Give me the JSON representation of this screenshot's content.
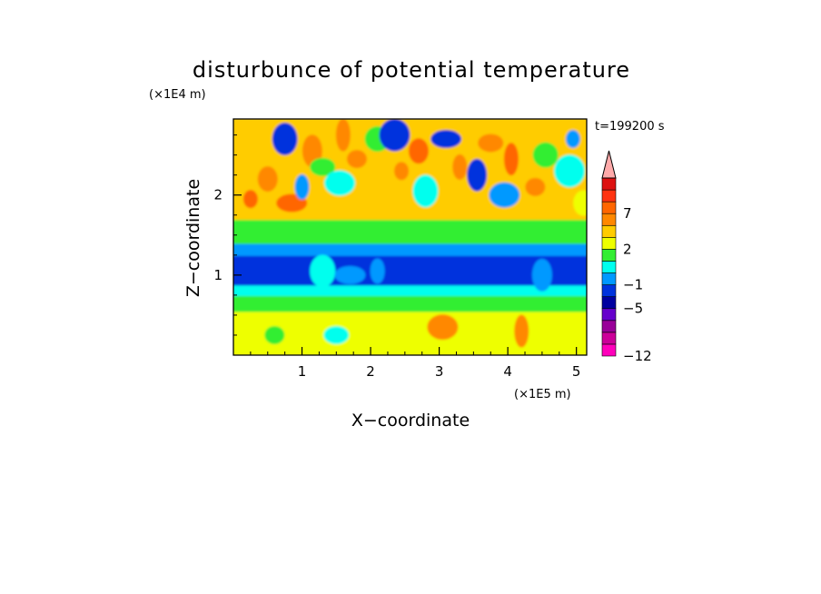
{
  "chart_data": {
    "type": "heatmap",
    "title": "disturbunce of potential temperature",
    "time_label": "t=199200 s",
    "xlabel": "X−coordinate",
    "ylabel": "Z−coordinate",
    "x_unit": "(×1E5 m)",
    "y_unit": "(×1E4 m)",
    "xlim": [
      0,
      5.15
    ],
    "ylim": [
      0,
      2.95
    ],
    "x_ticks": [
      1,
      2,
      3,
      4,
      5
    ],
    "y_ticks": [
      1,
      2
    ],
    "colorbar": {
      "levels": [
        -12,
        -11,
        -9,
        -7,
        -5,
        -3,
        -1,
        0,
        1,
        2,
        3,
        5,
        7,
        9,
        11
      ],
      "labels": [
        "−12",
        "−5",
        "−1",
        "2",
        "7"
      ],
      "extend": "max",
      "colors": [
        "#ff00bb",
        "#cc0099",
        "#990099",
        "#6600cc",
        "#0000a0",
        "#0033dd",
        "#0099ff",
        "#00ffee",
        "#33ee33",
        "#eeff00",
        "#ffcc00",
        "#ff8800",
        "#ff6600",
        "#ff3311",
        "#dd1111",
        "#ffaaaa"
      ]
    },
    "bands": [
      {
        "zmin": 0.0,
        "zmax": 0.55,
        "value": 1.5
      },
      {
        "zmin": 0.55,
        "zmax": 0.75,
        "value": 0.5
      },
      {
        "zmin": 0.75,
        "zmax": 0.88,
        "value": -0.5
      },
      {
        "zmin": 0.88,
        "zmax": 1.25,
        "value": -4.0
      },
      {
        "zmin": 1.25,
        "zmax": 1.4,
        "value": -2.0
      },
      {
        "zmin": 1.4,
        "zmax": 1.7,
        "value": 0.5
      },
      {
        "zmin": 1.7,
        "zmax": 2.95,
        "value": 2.5
      }
    ],
    "features": [
      {
        "x": 0.25,
        "z": 1.95,
        "value": 5.5
      },
      {
        "x": 0.5,
        "z": 2.2,
        "value": 3.0
      },
      {
        "x": 0.75,
        "z": 2.7,
        "value": -4.0
      },
      {
        "x": 0.85,
        "z": 1.9,
        "value": 5.5
      },
      {
        "x": 1.0,
        "z": 2.1,
        "value": -1.5
      },
      {
        "x": 1.15,
        "z": 2.55,
        "value": 4.0
      },
      {
        "x": 1.3,
        "z": 2.35,
        "value": 0.5
      },
      {
        "x": 1.55,
        "z": 2.15,
        "value": -0.5
      },
      {
        "x": 1.6,
        "z": 2.75,
        "value": 4.5
      },
      {
        "x": 1.8,
        "z": 2.45,
        "value": 3.0
      },
      {
        "x": 2.1,
        "z": 2.7,
        "value": 0.5
      },
      {
        "x": 2.35,
        "z": 2.75,
        "value": -4.5
      },
      {
        "x": 2.45,
        "z": 2.3,
        "value": 3.5
      },
      {
        "x": 2.7,
        "z": 2.55,
        "value": 5.5
      },
      {
        "x": 2.8,
        "z": 2.05,
        "value": -0.5
      },
      {
        "x": 3.1,
        "z": 2.7,
        "value": -5.0
      },
      {
        "x": 3.3,
        "z": 2.35,
        "value": 3.0
      },
      {
        "x": 3.55,
        "z": 2.25,
        "value": -4.0
      },
      {
        "x": 3.75,
        "z": 2.65,
        "value": 3.5
      },
      {
        "x": 3.95,
        "z": 2.0,
        "value": -2.0
      },
      {
        "x": 4.05,
        "z": 2.45,
        "value": 5.0
      },
      {
        "x": 4.4,
        "z": 2.1,
        "value": 3.0
      },
      {
        "x": 4.55,
        "z": 2.5,
        "value": 0.5
      },
      {
        "x": 4.9,
        "z": 2.3,
        "value": -0.5
      },
      {
        "x": 4.95,
        "z": 2.7,
        "value": -2.0
      },
      {
        "x": 5.1,
        "z": 1.9,
        "value": 1.5
      },
      {
        "x": 1.3,
        "z": 1.05,
        "value": -1.0
      },
      {
        "x": 1.7,
        "z": 1.0,
        "value": -1.5
      },
      {
        "x": 2.1,
        "z": 1.05,
        "value": -2.0
      },
      {
        "x": 4.5,
        "z": 1.0,
        "value": -2.0
      },
      {
        "x": 1.5,
        "z": 0.25,
        "value": -0.5
      },
      {
        "x": 3.05,
        "z": 0.35,
        "value": 3.0
      },
      {
        "x": 4.2,
        "z": 0.3,
        "value": 3.0
      },
      {
        "x": 0.6,
        "z": 0.25,
        "value": 0.5
      }
    ]
  }
}
